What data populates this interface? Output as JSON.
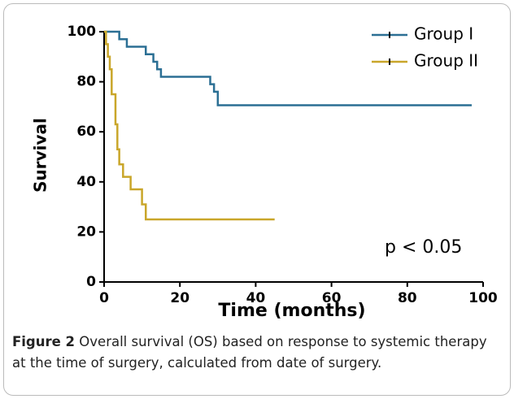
{
  "chart_data": {
    "type": "line",
    "step": true,
    "y_label": "Survival",
    "x_label": "Time (months)",
    "annotation": "p < 0.05",
    "xlim": [
      0,
      100
    ],
    "xticks": [
      0,
      20,
      40,
      60,
      80,
      100
    ],
    "ylim": [
      0,
      100
    ],
    "yticks": [
      0,
      20,
      40,
      60,
      80,
      100
    ],
    "series": [
      {
        "name": "Group I",
        "color": "#2b6f94",
        "x": [
          0,
          4,
          6,
          11,
          13,
          14,
          15,
          28,
          29,
          30,
          97
        ],
        "values": [
          100,
          97,
          94,
          91,
          88,
          85,
          82,
          79,
          76,
          70.6,
          70.6
        ]
      },
      {
        "name": "Group II",
        "color": "#c9a62a",
        "x": [
          0,
          0.5,
          1,
          1.5,
          2,
          3,
          3.5,
          4,
          5,
          7,
          10,
          11,
          45
        ],
        "values": [
          100,
          95,
          90,
          85,
          75,
          63,
          53,
          47,
          42,
          37,
          31,
          25,
          25
        ]
      }
    ],
    "caption_label": "Figure 2",
    "caption_text": "Overall survival (OS) based on response to systemic therapy at the time of surgery, calculated from date of surgery."
  }
}
